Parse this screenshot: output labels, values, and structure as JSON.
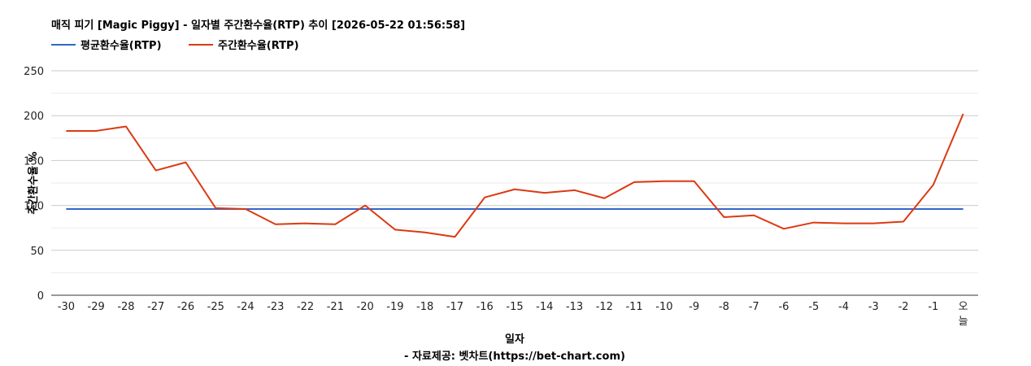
{
  "chart_data": {
    "type": "line",
    "title": "매직 피기 [Magic Piggy] - 일자별 주간환수율(RTP) 추이 [2026-05-22 01:56:58]",
    "xlabel": "일자",
    "ylabel": "주간환수율 %",
    "source_note": "- 자료제공: 벳차트(https://bet-chart.com)",
    "ylim": [
      0,
      250
    ],
    "yticks": [
      0,
      50,
      100,
      150,
      200,
      250
    ],
    "grid": true,
    "legend_position": "top-left",
    "categories": [
      "-30",
      "-29",
      "-28",
      "-27",
      "-26",
      "-25",
      "-24",
      "-23",
      "-22",
      "-21",
      "-20",
      "-19",
      "-18",
      "-17",
      "-16",
      "-15",
      "-14",
      "-13",
      "-12",
      "-11",
      "-10",
      "-9",
      "-8",
      "-7",
      "-6",
      "-5",
      "-4",
      "-3",
      "-2",
      "-1",
      "오늘"
    ],
    "series": [
      {
        "name": "평균환수율(RTP)",
        "color": "#3366cc",
        "values": [
          96,
          96,
          96,
          96,
          96,
          96,
          96,
          96,
          96,
          96,
          96,
          96,
          96,
          96,
          96,
          96,
          96,
          96,
          96,
          96,
          96,
          96,
          96,
          96,
          96,
          96,
          96,
          96,
          96,
          96,
          96
        ]
      },
      {
        "name": "주간환수율(RTP)",
        "color": "#dc3912",
        "values": [
          183,
          183,
          188,
          139,
          148,
          97,
          96,
          79,
          80,
          79,
          100,
          73,
          70,
          65,
          109,
          118,
          114,
          117,
          108,
          126,
          127,
          127,
          87,
          89,
          74,
          81,
          80,
          80,
          82,
          123,
          202
        ]
      }
    ]
  }
}
